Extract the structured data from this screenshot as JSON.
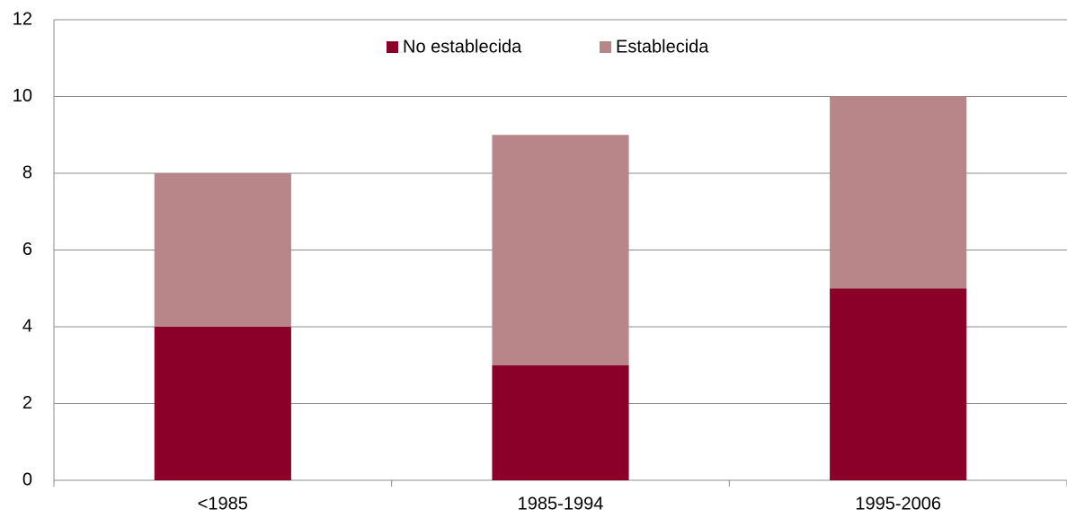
{
  "chart_data": {
    "type": "stacked_bar",
    "categories": [
      "<1985",
      "1985-1994",
      "1995-2006"
    ],
    "series": [
      {
        "name": "No establecida",
        "color": "#8a0029",
        "values": [
          4,
          3,
          5
        ]
      },
      {
        "name": "Establecida",
        "color": "#b88589",
        "values": [
          4,
          6,
          5
        ]
      }
    ],
    "ylim": [
      0,
      12
    ],
    "yticks": [
      0,
      2,
      4,
      6,
      8,
      10,
      12
    ],
    "grid": true,
    "legend": "top"
  }
}
